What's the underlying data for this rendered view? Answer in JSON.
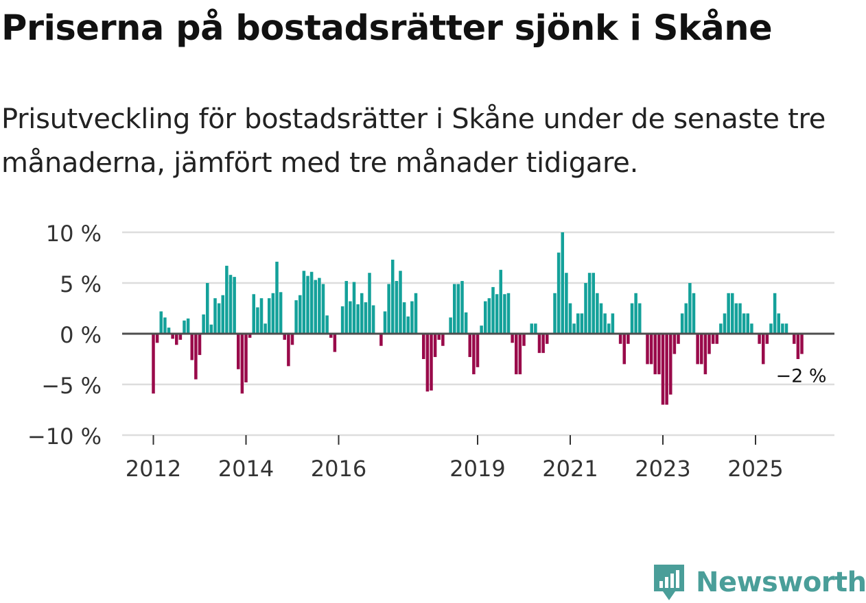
{
  "title": "Priserna på bostadsrätter sjönk i Skåne",
  "subtitle": "Prisutveckling för bostadsrätter i Skåne under de senaste tre månaderna, jämfört med tre månader tidigare.",
  "brand": "Newsworthy",
  "colors": {
    "positive": "#14a19a",
    "negative": "#990a4a",
    "grid": "#dddddd",
    "zero": "#4d4d4d",
    "brand": "#4a9e99"
  },
  "chart_data": {
    "type": "bar",
    "title": "Priserna på bostadsrätter sjönk i Skåne",
    "xlabel": "",
    "ylabel": "",
    "ylim": [
      -10,
      10
    ],
    "yticks": [
      {
        "value": 10,
        "label": "10 %"
      },
      {
        "value": 5,
        "label": "5 %"
      },
      {
        "value": 0,
        "label": "0 %"
      },
      {
        "value": -5,
        "label": "−5 %"
      },
      {
        "value": -10,
        "label": "−10 %"
      }
    ],
    "xticks": [
      {
        "year": 2012,
        "label": "2012"
      },
      {
        "year": 2014,
        "label": "2014"
      },
      {
        "year": 2016,
        "label": "2016"
      },
      {
        "year": 2019,
        "label": "2019"
      },
      {
        "year": 2021,
        "label": "2021"
      },
      {
        "year": 2023,
        "label": "2023"
      },
      {
        "year": 2025,
        "label": "2025"
      }
    ],
    "start": "2012-01",
    "frequency": "monthly",
    "annotation": {
      "text": "−2 %",
      "value": -2
    },
    "values": [
      -5.9,
      -0.9,
      2.2,
      1.6,
      0.6,
      -0.5,
      -1.1,
      -0.6,
      1.3,
      1.5,
      -2.6,
      -4.5,
      -2.1,
      1.9,
      5.0,
      0.9,
      3.5,
      3.0,
      3.8,
      6.7,
      5.8,
      5.6,
      -3.5,
      -5.9,
      -4.8,
      -0.4,
      3.9,
      2.6,
      3.5,
      1.0,
      3.5,
      4.0,
      7.1,
      4.1,
      -0.6,
      -3.2,
      -1.1,
      3.3,
      3.8,
      6.2,
      5.7,
      6.1,
      5.3,
      5.5,
      4.9,
      1.8,
      -0.4,
      -1.8,
      0.0,
      2.7,
      5.2,
      3.2,
      5.1,
      2.9,
      4.0,
      3.1,
      6.0,
      2.8,
      0.0,
      -1.2,
      2.2,
      4.9,
      7.3,
      5.2,
      6.2,
      3.1,
      1.7,
      3.2,
      4.0,
      -0.1,
      -2.5,
      -5.7,
      -5.6,
      -2.3,
      -0.6,
      -1.2,
      0.1,
      1.6,
      4.9,
      4.9,
      5.2,
      2.1,
      -2.3,
      -4.0,
      -3.3,
      0.8,
      3.2,
      3.5,
      4.6,
      3.9,
      6.3,
      3.9,
      4.0,
      -0.9,
      -4.0,
      -4.0,
      -1.2,
      0.0,
      1.0,
      1.0,
      -1.9,
      -1.9,
      -1.0,
      0.0,
      4.0,
      8.0,
      10.0,
      6.0,
      3.0,
      1.0,
      2.0,
      2.0,
      5.0,
      6.0,
      6.0,
      4.0,
      3.0,
      2.0,
      1.0,
      2.0,
      0.0,
      -1.0,
      -3.0,
      -1.0,
      3.0,
      4.0,
      3.0,
      0.0,
      -3.0,
      -3.0,
      -4.0,
      -4.0,
      -7.0,
      -7.0,
      -6.0,
      -2.0,
      -1.0,
      2.0,
      3.0,
      5.0,
      4.0,
      -3.0,
      -3.0,
      -4.0,
      -2.0,
      -1.0,
      -1.0,
      1.0,
      2.0,
      4.0,
      4.0,
      3.0,
      3.0,
      2.0,
      2.0,
      1.0,
      0.0,
      -1.0,
      -3.0,
      -1.0,
      1.0,
      4.0,
      2.0,
      1.0,
      1.0,
      0.0,
      -1.0,
      -2.5,
      -2.0
    ]
  }
}
